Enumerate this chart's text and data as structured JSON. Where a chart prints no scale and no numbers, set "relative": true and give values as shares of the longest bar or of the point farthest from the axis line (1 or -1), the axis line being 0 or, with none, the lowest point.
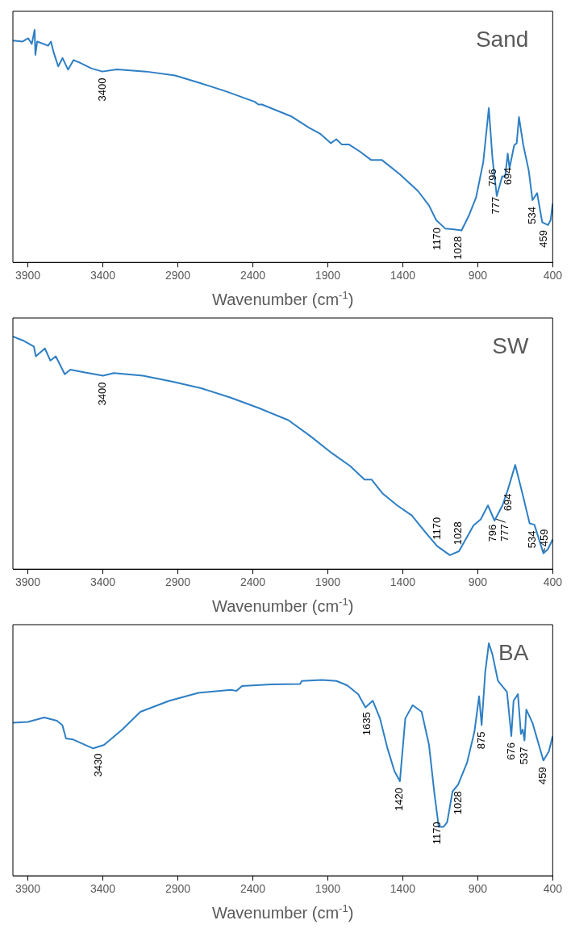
{
  "chart_data": [
    {
      "type": "line",
      "title": "Sand",
      "xlabel": "Wavenumber (cm$^{-1}$)",
      "relative": true,
      "xlim": [
        4000,
        400
      ],
      "xticks": [
        3900,
        3400,
        2900,
        2400,
        1900,
        1400,
        900,
        400
      ],
      "x": [
        4000,
        3935,
        3898,
        3874,
        3855,
        3850,
        3838,
        3765,
        3746,
        3729,
        3698,
        3669,
        3632,
        3596,
        3560,
        3475,
        3403,
        3306,
        3112,
        2919,
        2750,
        2580,
        2387,
        2363,
        2339,
        2146,
        2024,
        1952,
        1879,
        1843,
        1806,
        1758,
        1686,
        1612,
        1540,
        1419,
        1298,
        1225,
        1177,
        1117,
        1068,
        1008,
        960,
        911,
        863,
        826,
        802,
        773,
        737,
        717,
        700,
        688,
        657,
        640,
        625,
        596,
        560,
        535,
        504,
        470,
        431,
        414,
        400
      ],
      "series": [
        {
          "color": "#2e7fc4",
          "values": [
            0.954,
            0.95,
            0.964,
            0.94,
            1.0,
            0.893,
            0.95,
            0.932,
            0.95,
            0.905,
            0.843,
            0.879,
            0.829,
            0.87,
            0.861,
            0.834,
            0.821,
            0.83,
            0.821,
            0.804,
            0.771,
            0.736,
            0.691,
            0.679,
            0.679,
            0.629,
            0.579,
            0.554,
            0.513,
            0.53,
            0.507,
            0.507,
            0.477,
            0.441,
            0.441,
            0.379,
            0.307,
            0.245,
            0.182,
            0.146,
            0.143,
            0.138,
            0.2,
            0.28,
            0.432,
            0.664,
            0.45,
            0.286,
            0.37,
            0.37,
            0.468,
            0.405,
            0.504,
            0.513,
            0.625,
            0.504,
            0.396,
            0.268,
            0.298,
            0.173,
            0.161,
            0.182,
            0.254
          ]
        }
      ],
      "annotations": [
        {
          "text": "3400",
          "x": 3400,
          "y": 0.821
        },
        {
          "text": "1170",
          "x": 1170,
          "y": 0.178
        },
        {
          "text": "1028",
          "x": 1028,
          "y": 0.14
        },
        {
          "text": "796",
          "x": 796,
          "y": 0.43
        },
        {
          "text": "777",
          "x": 777,
          "y": 0.31
        },
        {
          "text": "694",
          "x": 694,
          "y": 0.436
        },
        {
          "text": "534",
          "x": 534,
          "y": 0.268
        },
        {
          "text": "459",
          "x": 459,
          "y": 0.167
        }
      ]
    },
    {
      "type": "line",
      "title": "SW",
      "xlabel": "Wavenumber (cm$^{-1}$)",
      "relative": true,
      "xlim": [
        4000,
        400
      ],
      "xticks": [
        3900,
        3400,
        2900,
        2400,
        1900,
        1400,
        900,
        400
      ],
      "x": [
        4000,
        3932,
        3860,
        3847,
        3787,
        3750,
        3714,
        3654,
        3617,
        3520,
        3399,
        3327,
        3133,
        2939,
        2745,
        2551,
        2358,
        2164,
        2018,
        1873,
        1752,
        1655,
        1607,
        1534,
        1437,
        1340,
        1243,
        1171,
        1086,
        1025,
        928,
        880,
        832,
        788,
        735,
        699,
        650,
        602,
        554,
        522,
        462,
        433,
        400
      ],
      "series": [
        {
          "color": "#2e7fc4",
          "values": [
            1.0,
            0.983,
            0.957,
            0.915,
            0.949,
            0.897,
            0.915,
            0.838,
            0.858,
            0.846,
            0.832,
            0.843,
            0.832,
            0.807,
            0.778,
            0.738,
            0.692,
            0.641,
            0.573,
            0.499,
            0.444,
            0.385,
            0.385,
            0.325,
            0.274,
            0.231,
            0.154,
            0.099,
            0.06,
            0.077,
            0.188,
            0.214,
            0.274,
            0.209,
            0.274,
            0.342,
            0.448,
            0.325,
            0.197,
            0.191,
            0.068,
            0.085,
            0.128
          ]
        }
      ],
      "annotations": [
        {
          "text": "3400",
          "x": 3400,
          "y": 0.832
        },
        {
          "text": "1170",
          "x": 1170,
          "y": 0.099
        },
        {
          "text": "1028",
          "x": 1028,
          "y": 0.076
        },
        {
          "text": "796",
          "x": 796,
          "y": 0.22
        },
        {
          "text": "777",
          "x": 777,
          "y": 0.222
        },
        {
          "text": "694",
          "x": 694,
          "y": 0.353
        },
        {
          "text": "534",
          "x": 534,
          "y": 0.193
        },
        {
          "text": "459",
          "x": 459,
          "y": 0.069
        }
      ]
    },
    {
      "type": "line",
      "title": "BA",
      "xlabel": "Wavenumber (cm$^{-1}$)",
      "relative": true,
      "xlim": [
        4000,
        400
      ],
      "xticks": [
        3900,
        3400,
        2900,
        2400,
        1900,
        1400,
        900,
        400
      ],
      "x": [
        4000,
        3900,
        3791,
        3707,
        3670,
        3646,
        3598,
        3465,
        3392,
        3271,
        3150,
        2956,
        2763,
        2545,
        2509,
        2472,
        2278,
        2085,
        2073,
        1939,
        1842,
        1770,
        1697,
        1649,
        1600,
        1552,
        1504,
        1455,
        1419,
        1383,
        1334,
        1274,
        1225,
        1189,
        1160,
        1128,
        1104,
        1068,
        1031,
        971,
        922,
        891,
        874,
        850,
        826,
        802,
        765,
        705,
        676,
        661,
        632,
        612,
        600,
        588,
        576,
        535,
        462,
        426,
        400
      ],
      "series": [
        {
          "color": "#2e7fc4",
          "values": [
            0.658,
            0.662,
            0.681,
            0.667,
            0.648,
            0.591,
            0.586,
            0.548,
            0.563,
            0.629,
            0.705,
            0.753,
            0.787,
            0.8,
            0.795,
            0.816,
            0.823,
            0.825,
            0.838,
            0.842,
            0.838,
            0.819,
            0.781,
            0.724,
            0.753,
            0.677,
            0.553,
            0.449,
            0.407,
            0.677,
            0.734,
            0.705,
            0.563,
            0.354,
            0.211,
            0.211,
            0.23,
            0.363,
            0.392,
            0.487,
            0.62,
            0.772,
            0.648,
            0.876,
            1.0,
            0.952,
            0.838,
            0.791,
            0.601,
            0.753,
            0.781,
            0.61,
            0.629,
            0.582,
            0.715,
            0.658,
            0.496,
            0.534,
            0.601
          ]
        }
      ],
      "annotations": [
        {
          "text": "3430",
          "x": 3430,
          "y": 0.554
        },
        {
          "text": "1635",
          "x": 1635,
          "y": 0.732
        },
        {
          "text": "1420",
          "x": 1420,
          "y": 0.407
        },
        {
          "text": "1170",
          "x": 1170,
          "y": 0.26
        },
        {
          "text": "1028",
          "x": 1028,
          "y": 0.392
        },
        {
          "text": "875",
          "x": 875,
          "y": 0.648
        },
        {
          "text": "676",
          "x": 676,
          "y": 0.601
        },
        {
          "text": "537",
          "x": 588,
          "y": 0.582
        },
        {
          "text": "459",
          "x": 462,
          "y": 0.496
        }
      ]
    }
  ]
}
